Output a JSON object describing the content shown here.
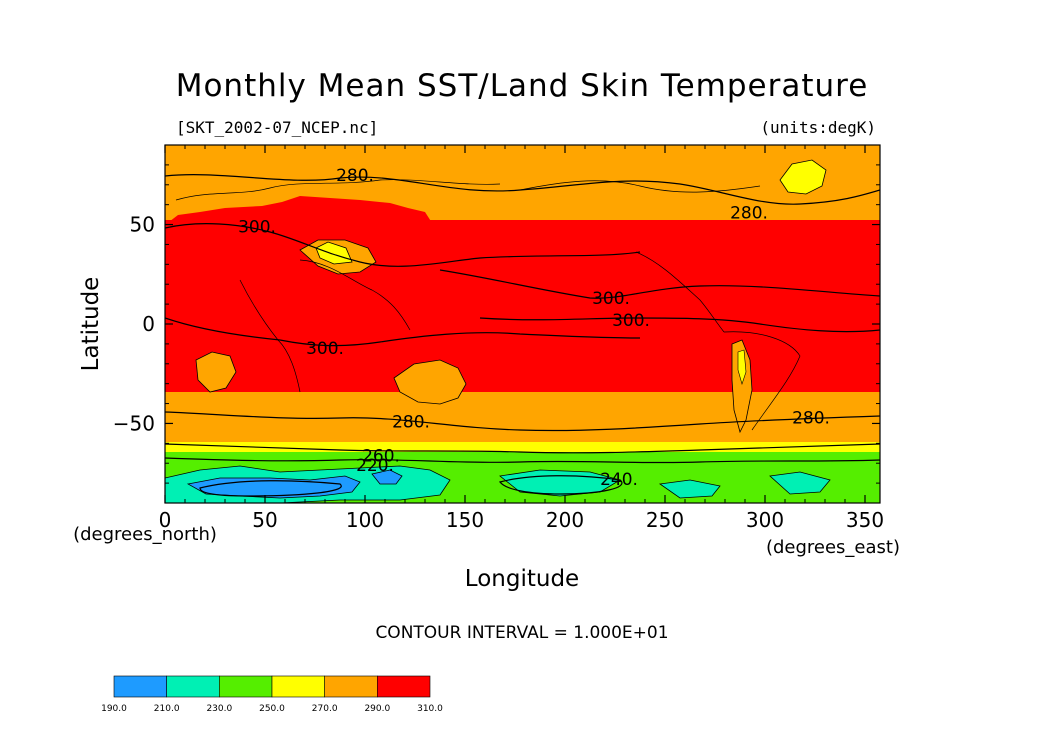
{
  "chart_data": {
    "type": "heatmap",
    "title": "Monthly Mean SST/Land Skin Temperature",
    "subtitle_left": "[SKT_2002-07_NCEP.nc]",
    "subtitle_right": "(units:degK)",
    "xlabel": "Longitude",
    "ylabel": "Latitude",
    "x_units": "(degrees_east)",
    "y_units": "(degrees_north)",
    "xlim": [
      0,
      357.5
    ],
    "ylim": [
      -90,
      90
    ],
    "x_ticks": [
      0,
      50,
      100,
      150,
      200,
      250,
      300,
      350
    ],
    "y_ticks": [
      -50,
      0,
      50
    ],
    "contour_interval_text": "CONTOUR INTERVAL = 1.000E+01",
    "contour_labels": [
      {
        "text": "280.",
        "lon": 95,
        "lat": 75
      },
      {
        "text": "300.",
        "lon": 46,
        "lat": 49
      },
      {
        "text": "300.",
        "lon": 223,
        "lat": 13
      },
      {
        "text": "300.",
        "lon": 233,
        "lat": 2
      },
      {
        "text": "300.",
        "lon": 80,
        "lat": -12
      },
      {
        "text": "280.",
        "lon": 123,
        "lat": -49
      },
      {
        "text": "280.",
        "lon": 323,
        "lat": -47
      },
      {
        "text": "260.",
        "lon": 108,
        "lat": -66
      },
      {
        "text": "220.",
        "lon": 105,
        "lat": -71
      },
      {
        "text": "240.",
        "lon": 227,
        "lat": -78
      },
      {
        "text": "280.",
        "lon": 292,
        "lat": 56
      }
    ],
    "colorbar": {
      "levels": [
        190.0,
        210.0,
        230.0,
        250.0,
        270.0,
        290.0,
        310.0
      ],
      "tick_labels": [
        "190.0",
        "210.0",
        "230.0",
        "250.0",
        "270.0",
        "290.0",
        "310.0"
      ],
      "colors": [
        "#1e9bff",
        "#00f0b4",
        "#55ee00",
        "#ffff00",
        "#ffa500",
        "#ff0000"
      ]
    }
  }
}
